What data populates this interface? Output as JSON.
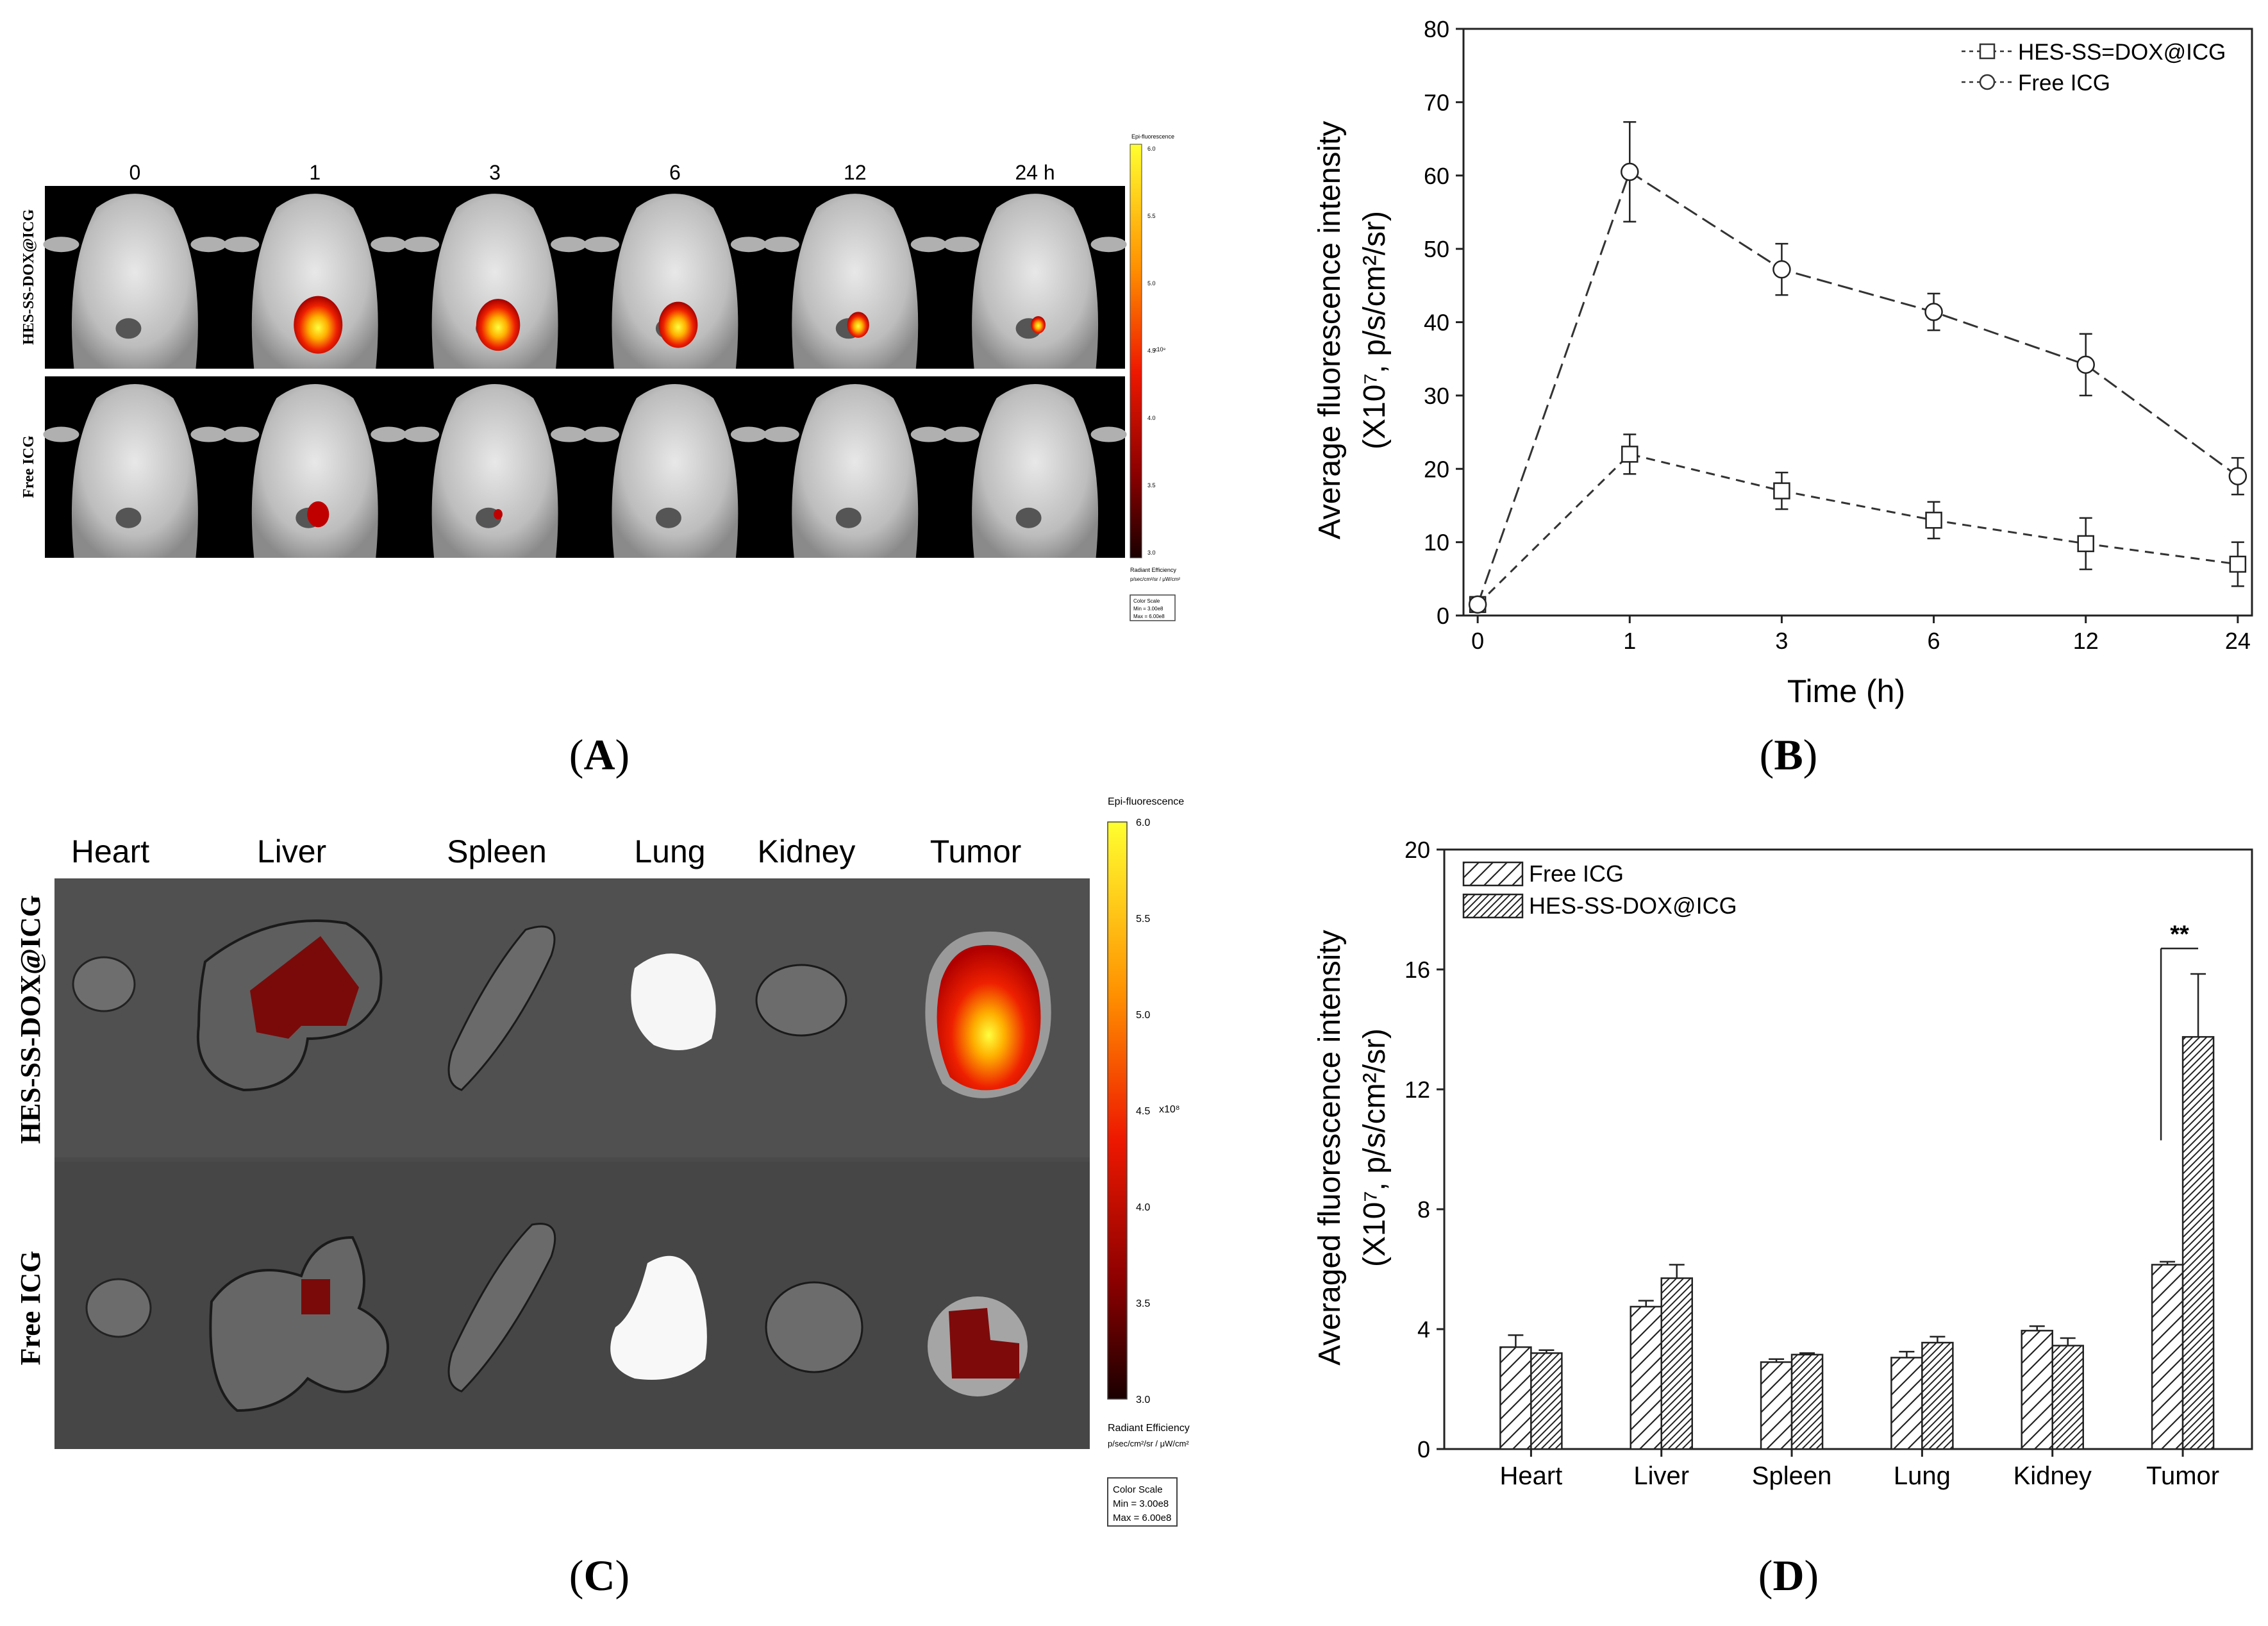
{
  "panel_labels": {
    "a": "A",
    "b": "B",
    "c": "C",
    "d": "D"
  },
  "panel_a": {
    "time_labels": [
      "0",
      "1",
      "3",
      "6",
      "12",
      "24 h"
    ],
    "row_labels": [
      "HES-SS-DOX@ICG",
      "Free ICG"
    ],
    "scale": {
      "title": "Epi-fluorescence",
      "ticks": [
        "6.0",
        "5.5",
        "5.0",
        "4.5",
        "4.0",
        "3.5",
        "3.0"
      ],
      "exp": "x10⁸",
      "unit_title": "Radiant Efficiency",
      "unit": "p/sec/cm²/sr / μW/cm²",
      "box": [
        "Color Scale",
        "Min = 3.00e8",
        "Max = 6.00e8"
      ]
    }
  },
  "panel_c": {
    "organ_labels": [
      "Heart",
      "Liver",
      "Spleen",
      "Lung",
      "Kidney",
      "Tumor"
    ],
    "row_labels": [
      "HES-SS-DOX@ICG",
      "Free ICG"
    ],
    "scale": {
      "title": "Epi-fluorescence",
      "ticks": [
        "6.0",
        "5.5",
        "5.0",
        "4.5",
        "4.0",
        "3.5",
        "3.0"
      ],
      "exp": "x10⁸",
      "unit_title": "Radiant Efficiency",
      "unit": "p/sec/cm²/sr / μW/cm²",
      "box": [
        "Color Scale",
        "Min = 3.00e8",
        "Max = 6.00e8"
      ]
    }
  },
  "chart_data": [
    {
      "type": "line",
      "panel": "B",
      "categories": [
        "0",
        "1",
        "3",
        "6",
        "12",
        "24"
      ],
      "xlabel": "Time (h)",
      "ylabel_line1": "Average fluorescence intensity",
      "ylabel_line2": "(X10⁷, p/s/cm²/sr)",
      "ylim": [
        0,
        80
      ],
      "yticks": [
        0,
        10,
        20,
        30,
        40,
        50,
        60,
        70,
        80
      ],
      "series": [
        {
          "name": "HES-SS=DOX@ICG",
          "marker": "square",
          "values": [
            1.5,
            22,
            17,
            13,
            9.8,
            7
          ],
          "errors": [
            1,
            2.7,
            2.5,
            2.5,
            3.5,
            3
          ]
        },
        {
          "name": "Free ICG",
          "marker": "circle",
          "values": [
            1.5,
            60.5,
            47.2,
            41.4,
            34.2,
            19
          ],
          "errors": [
            1,
            6.8,
            3.5,
            2.5,
            4.2,
            2.5
          ]
        }
      ]
    },
    {
      "type": "bar",
      "panel": "D",
      "categories": [
        "Heart",
        "Liver",
        "Spleen",
        "Lung",
        "Kidney",
        "Tumor"
      ],
      "xlabel": "",
      "ylabel_line1": "Averaged fluorescence intensity",
      "ylabel_line2": "(X10⁷, p/s/cm²/sr)",
      "ylim": [
        0,
        20
      ],
      "yticks": [
        0,
        4,
        8,
        12,
        16,
        20
      ],
      "series": [
        {
          "name": "Free ICG",
          "hatch": "sparse",
          "values": [
            3.4,
            4.75,
            2.9,
            3.05,
            3.95,
            6.15
          ],
          "errors": [
            0.4,
            0.2,
            0.1,
            0.2,
            0.15,
            0.1
          ]
        },
        {
          "name": "HES-SS-DOX@ICG",
          "hatch": "dense",
          "values": [
            3.2,
            5.7,
            3.15,
            3.55,
            3.45,
            13.75
          ],
          "errors": [
            0.1,
            0.45,
            0.05,
            0.2,
            0.25,
            2.1
          ]
        }
      ],
      "annotation": "**"
    }
  ]
}
